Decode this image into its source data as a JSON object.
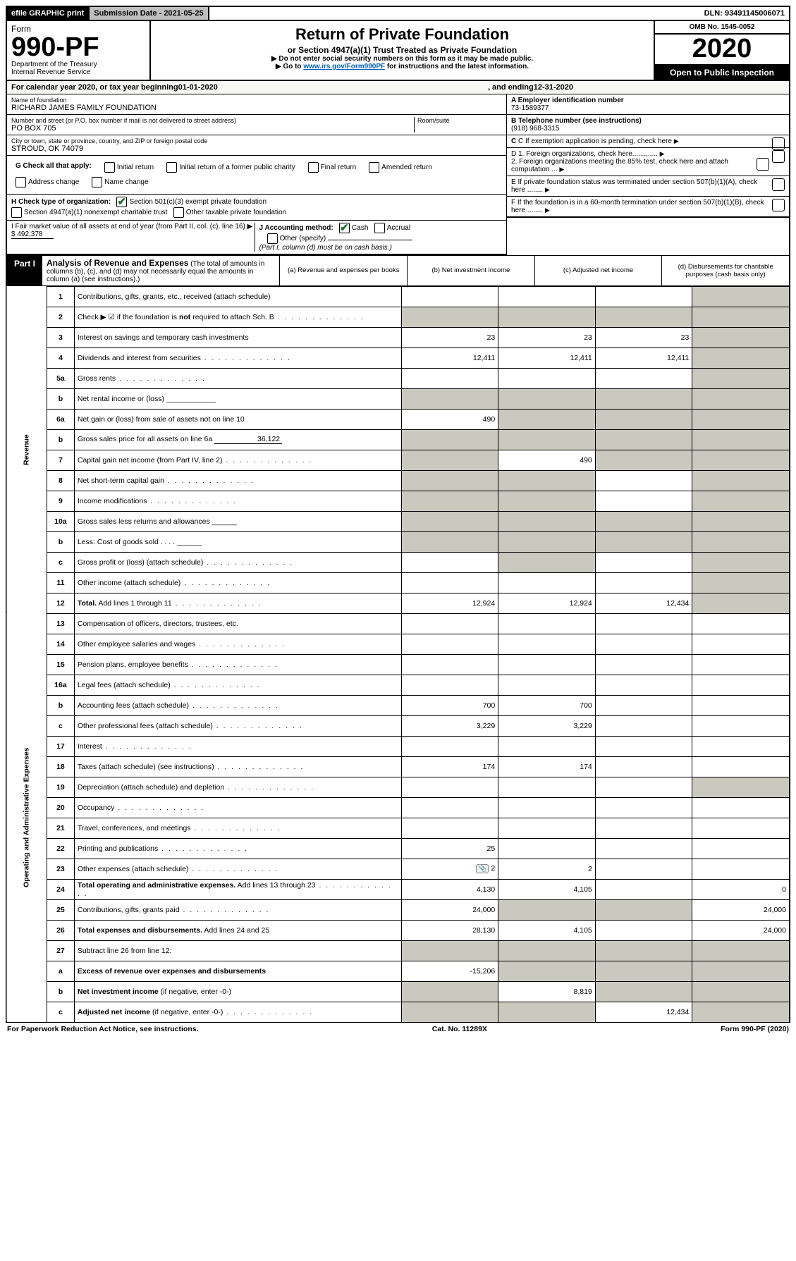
{
  "topbar": {
    "efile": "efile GRAPHIC print",
    "submission": "Submission Date - 2021-05-25",
    "dln": "DLN: 93491145006071"
  },
  "header": {
    "form_word": "Form",
    "form_no": "990-PF",
    "dept1": "Department of the Treasury",
    "dept2": "Internal Revenue Service",
    "title": "Return of Private Foundation",
    "sub1": "or Section 4947(a)(1) Trust Treated as Private Foundation",
    "sub2a": "▶ Do not enter social security numbers on this form as it may be made public.",
    "sub2b_pre": "▶ Go to ",
    "sub2b_link": "www.irs.gov/Form990PF",
    "sub2b_post": " for instructions and the latest information.",
    "omb": "OMB No. 1545-0052",
    "year": "2020",
    "inspect": "Open to Public Inspection"
  },
  "calendar": {
    "pre": "For calendar year 2020, or tax year beginning ",
    "begin": "01-01-2020",
    "mid": ", and ending ",
    "end": "12-31-2020"
  },
  "info": {
    "name_lbl": "Name of foundation",
    "name": "RICHARD JAMES FAMILY FOUNDATION",
    "addr_lbl": "Number and street (or P.O. box number if mail is not delivered to street address)",
    "addr": "PO BOX 705",
    "room_lbl": "Room/suite",
    "city_lbl": "City or town, state or province, country, and ZIP or foreign postal code",
    "city": "STROUD, OK  74079",
    "a_lbl": "A Employer identification number",
    "a_val": "73-1589377",
    "b_lbl": "B Telephone number (see instructions)",
    "b_val": "(918) 968-3315",
    "c_lbl": "C If exemption application is pending, check here",
    "d1": "D 1. Foreign organizations, check here.............",
    "d2": "2. Foreign organizations meeting the 85% test, check here and attach computation ...",
    "e": "E  If private foundation status was terminated under section 507(b)(1)(A), check here ........",
    "f": "F  If the foundation is in a 60-month termination under section 507(b)(1)(B), check here ........"
  },
  "g": {
    "label": "G Check all that apply:",
    "opts": [
      "Initial return",
      "Initial return of a former public charity",
      "Final return",
      "Amended return",
      "Address change",
      "Name change"
    ]
  },
  "h": {
    "label": "H Check type of organization:",
    "o1": "Section 501(c)(3) exempt private foundation",
    "o2": "Section 4947(a)(1) nonexempt charitable trust",
    "o3": "Other taxable private foundation"
  },
  "i": {
    "label": "I Fair market value of all assets at end of year (from Part II, col. (c), line 16) ▶",
    "val": "$  492,378"
  },
  "j": {
    "label": "J Accounting method:",
    "cash": "Cash",
    "accrual": "Accrual",
    "other": "Other (specify)",
    "note": "(Part I, column (d) must be on cash basis.)"
  },
  "part1": {
    "label": "Part I",
    "title": "Analysis of Revenue and Expenses",
    "note": "(The total of amounts in columns (b), (c), and (d) may not necessarily equal the amounts in column (a) (see instructions).)",
    "cols": {
      "a": "(a)    Revenue and expenses per books",
      "b": "(b)   Net investment income",
      "c": "(c)   Adjusted net income",
      "d": "(d)   Disbursements for charitable purposes (cash basis only)"
    }
  },
  "side": {
    "rev": "Revenue",
    "exp": "Operating and Administrative Expenses"
  },
  "rows": [
    {
      "n": "1",
      "d": "Contributions, gifts, grants, etc., received (attach schedule)",
      "a": "",
      "b": "",
      "c": "",
      "dG": true
    },
    {
      "n": "2",
      "d": "Check ▶ ☑ if the foundation is <b>not</b> required to attach Sch. B",
      "dots": true,
      "a": "",
      "b": "",
      "c": "",
      "dG": true,
      "aG": true,
      "bG": true,
      "cG": true
    },
    {
      "n": "3",
      "d": "Interest on savings and temporary cash investments",
      "a": "23",
      "b": "23",
      "c": "23",
      "dG": true
    },
    {
      "n": "4",
      "d": "Dividends and interest from securities",
      "dots": true,
      "a": "12,411",
      "b": "12,411",
      "c": "12,411",
      "dG": true
    },
    {
      "n": "5a",
      "d": "Gross rents",
      "dots": true,
      "a": "",
      "b": "",
      "c": "",
      "dG": true
    },
    {
      "n": "b",
      "d": "Net rental income or (loss) ____________",
      "aG": true,
      "bG": true,
      "cG": true,
      "dG": true
    },
    {
      "n": "6a",
      "d": "Net gain or (loss) from sale of assets not on line 10",
      "a": "490",
      "bG": true,
      "cG": true,
      "dG": true
    },
    {
      "n": "b",
      "d": "Gross sales price for all assets on line 6a",
      "inline": "36,122",
      "aG": true,
      "bG": true,
      "cG": true,
      "dG": true
    },
    {
      "n": "7",
      "d": "Capital gain net income (from Part IV, line 2)",
      "dots": true,
      "aG": true,
      "b": "490",
      "cG": true,
      "dG": true
    },
    {
      "n": "8",
      "d": "Net short-term capital gain",
      "dots": true,
      "aG": true,
      "bG": true,
      "c": "",
      "dG": true
    },
    {
      "n": "9",
      "d": "Income modifications",
      "dots": true,
      "aG": true,
      "bG": true,
      "c": "",
      "dG": true
    },
    {
      "n": "10a",
      "d": "Gross sales less returns and allowances ______",
      "aG": true,
      "bG": true,
      "cG": true,
      "dG": true
    },
    {
      "n": "b",
      "d": "Less: Cost of goods sold     .  .  .  .  ______",
      "aG": true,
      "bG": true,
      "cG": true,
      "dG": true
    },
    {
      "n": "c",
      "d": "Gross profit or (loss) (attach schedule)",
      "dots": true,
      "a": "",
      "bG": true,
      "c": "",
      "dG": true
    },
    {
      "n": "11",
      "d": "Other income (attach schedule)",
      "dots": true,
      "a": "",
      "b": "",
      "c": "",
      "dG": true
    },
    {
      "n": "12",
      "d": "<b>Total.</b> Add lines 1 through 11",
      "dots": true,
      "a": "12,924",
      "b": "12,924",
      "c": "12,434",
      "dG": true
    }
  ],
  "rows2": [
    {
      "n": "13",
      "d": "Compensation of officers, directors, trustees, etc.",
      "a": "",
      "b": "",
      "c": "",
      "dd": ""
    },
    {
      "n": "14",
      "d": "Other employee salaries and wages",
      "dots": true,
      "a": "",
      "b": "",
      "c": "",
      "dd": ""
    },
    {
      "n": "15",
      "d": "Pension plans, employee benefits",
      "dots": true,
      "a": "",
      "b": "",
      "c": "",
      "dd": ""
    },
    {
      "n": "16a",
      "d": "Legal fees (attach schedule)",
      "dots": true,
      "a": "",
      "b": "",
      "c": "",
      "dd": ""
    },
    {
      "n": "b",
      "d": "Accounting fees (attach schedule)",
      "dots": true,
      "a": "700",
      "b": "700",
      "c": "",
      "dd": ""
    },
    {
      "n": "c",
      "d": "Other professional fees (attach schedule)",
      "dots": true,
      "a": "3,229",
      "b": "3,229",
      "c": "",
      "dd": ""
    },
    {
      "n": "17",
      "d": "Interest",
      "dots": true,
      "a": "",
      "b": "",
      "c": "",
      "dd": ""
    },
    {
      "n": "18",
      "d": "Taxes (attach schedule) (see instructions)",
      "dots": true,
      "a": "174",
      "b": "174",
      "c": "",
      "dd": ""
    },
    {
      "n": "19",
      "d": "Depreciation (attach schedule) and depletion",
      "dots": true,
      "a": "",
      "b": "",
      "c": "",
      "dG": true
    },
    {
      "n": "20",
      "d": "Occupancy",
      "dots": true,
      "a": "",
      "b": "",
      "c": "",
      "dd": ""
    },
    {
      "n": "21",
      "d": "Travel, conferences, and meetings",
      "dots": true,
      "a": "",
      "b": "",
      "c": "",
      "dd": ""
    },
    {
      "n": "22",
      "d": "Printing and publications",
      "dots": true,
      "a": "25",
      "b": "",
      "c": "",
      "dd": ""
    },
    {
      "n": "23",
      "d": "Other expenses (attach schedule)",
      "dots": true,
      "icon": true,
      "a": "2",
      "b": "2",
      "c": "",
      "dd": ""
    },
    {
      "n": "24",
      "d": "<b>Total operating and administrative expenses.</b> Add lines 13 through 23",
      "dots": true,
      "a": "4,130",
      "b": "4,105",
      "c": "",
      "dd": "0"
    },
    {
      "n": "25",
      "d": "Contributions, gifts, grants paid",
      "dots": true,
      "a": "24,000",
      "bG": true,
      "cG": true,
      "dd": "24,000"
    },
    {
      "n": "26",
      "d": "<b>Total expenses and disbursements.</b> Add lines 24 and 25",
      "a": "28,130",
      "b": "4,105",
      "c": "",
      "dd": "24,000"
    },
    {
      "n": "27",
      "d": "Subtract line 26 from line 12:",
      "aG": true,
      "bG": true,
      "cG": true,
      "dG": true
    },
    {
      "n": "a",
      "d": "<b>Excess of revenue over expenses and disbursements</b>",
      "a": "-15,206",
      "bG": true,
      "cG": true,
      "dG": true
    },
    {
      "n": "b",
      "d": "<b>Net investment income</b> (if negative, enter -0-)",
      "aG": true,
      "b": "8,819",
      "cG": true,
      "dG": true
    },
    {
      "n": "c",
      "d": "<b>Adjusted net income</b> (if negative, enter -0-)",
      "dots": true,
      "aG": true,
      "bG": true,
      "c": "12,434",
      "dG": true
    }
  ],
  "footer": {
    "left": "For Paperwork Reduction Act Notice, see instructions.",
    "mid": "Cat. No. 11289X",
    "right": "Form 990-PF (2020)"
  }
}
